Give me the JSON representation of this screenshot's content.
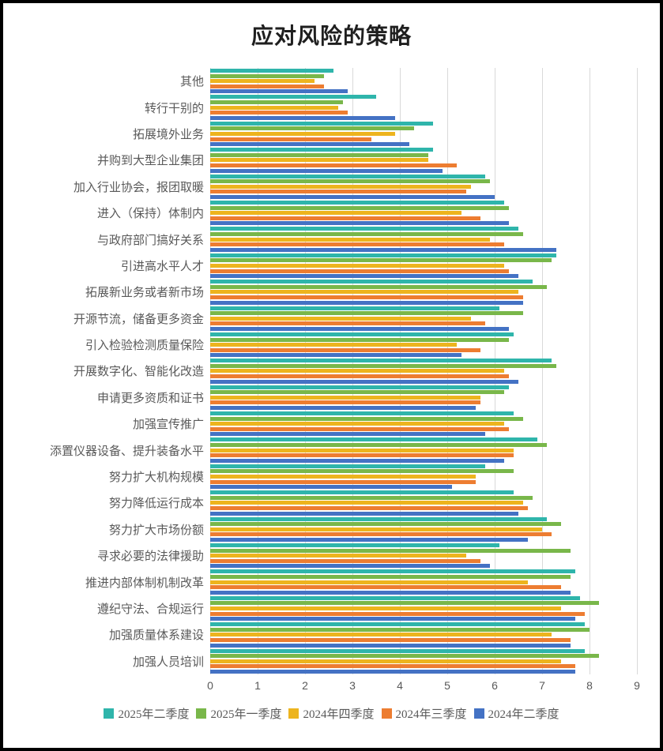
{
  "page": {
    "title": "应对风险的策略"
  },
  "chart_data": {
    "type": "bar",
    "orientation": "horizontal",
    "title": "应对风险的策略",
    "xlabel": "",
    "ylabel": "",
    "xlim": [
      0,
      9
    ],
    "x_ticks": [
      "0",
      "1",
      "2",
      "3",
      "4",
      "5",
      "6",
      "7",
      "8",
      "9"
    ],
    "grid": true,
    "legend_position": "bottom",
    "categories": [
      "其他",
      "转行干别的",
      "拓展境外业务",
      "并购到大型企业集团",
      "加入行业协会，报团取暖",
      "进入（保持）体制内",
      "与政府部门搞好关系",
      "引进高水平人才",
      "拓展新业务或者新市场",
      "开源节流，储备更多资金",
      "引入检验检测质量保险",
      "开展数字化、智能化改造",
      "申请更多资质和证书",
      "加强宣传推广",
      "添置仪器设备、提升装备水平",
      "努力扩大机构规模",
      "努力降低运行成本",
      "努力扩大市场份额",
      "寻求必要的法律援助",
      "推进内部体制机制改革",
      "遵纪守法、合规运行",
      "加强质量体系建设",
      "加强人员培训"
    ],
    "series": [
      {
        "name": "2025年二季度",
        "color": "#2FB5AB",
        "values": [
          2.6,
          3.5,
          4.7,
          4.7,
          5.8,
          6.2,
          6.5,
          7.3,
          6.8,
          6.1,
          6.4,
          7.2,
          6.3,
          6.4,
          6.9,
          5.8,
          6.4,
          7.1,
          6.1,
          7.7,
          7.8,
          7.9,
          7.9
        ]
      },
      {
        "name": "2025年一季度",
        "color": "#79B74A",
        "values": [
          2.4,
          2.8,
          4.3,
          4.6,
          5.9,
          6.3,
          6.6,
          7.2,
          7.1,
          6.6,
          6.3,
          7.3,
          6.2,
          6.6,
          7.1,
          6.4,
          6.8,
          7.4,
          7.6,
          7.6,
          8.2,
          8.0,
          8.2
        ]
      },
      {
        "name": "2024年四季度",
        "color": "#EDB41E",
        "values": [
          2.2,
          2.7,
          3.9,
          4.6,
          5.5,
          5.3,
          5.9,
          6.2,
          6.5,
          5.5,
          5.2,
          6.2,
          5.7,
          6.2,
          6.4,
          5.6,
          6.6,
          7.0,
          5.4,
          6.7,
          7.4,
          7.2,
          7.4
        ]
      },
      {
        "name": "2024年三季度",
        "color": "#ED7D31",
        "values": [
          2.4,
          2.9,
          3.4,
          5.2,
          5.4,
          5.7,
          6.2,
          6.3,
          6.6,
          5.8,
          5.7,
          6.3,
          5.7,
          6.3,
          6.4,
          5.6,
          6.7,
          7.2,
          5.7,
          7.4,
          7.9,
          7.6,
          7.7
        ]
      },
      {
        "name": "2024年二季度",
        "color": "#4472C4",
        "values": [
          2.9,
          3.9,
          4.2,
          4.9,
          6.0,
          6.3,
          7.3,
          6.5,
          6.6,
          6.3,
          5.3,
          6.5,
          5.6,
          5.8,
          6.2,
          5.1,
          6.5,
          6.7,
          5.9,
          7.6,
          7.7,
          7.6,
          7.7
        ]
      }
    ],
    "colors": {
      "grid": "#d9d9d9",
      "axis_text": "#595959",
      "title_text": "#1f1f1f"
    }
  }
}
